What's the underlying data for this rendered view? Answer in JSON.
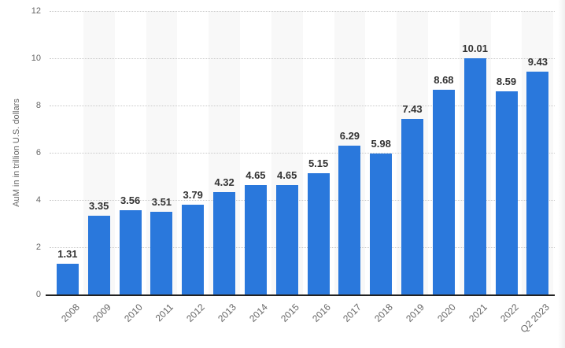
{
  "chart_data": {
    "type": "bar",
    "categories": [
      "2008",
      "2009",
      "2010",
      "2011",
      "2012",
      "2013",
      "2014",
      "2015",
      "2016",
      "2017",
      "2018",
      "2019",
      "2020",
      "2021",
      "2022",
      "Q2 2023"
    ],
    "values": [
      1.31,
      3.35,
      3.56,
      3.51,
      3.79,
      4.32,
      4.65,
      4.65,
      5.15,
      6.29,
      5.98,
      7.43,
      8.68,
      10.01,
      8.59,
      9.43
    ],
    "value_labels": [
      "1.31",
      "3.35",
      "3.56",
      "3.51",
      "3.79",
      "4.32",
      "4.65",
      "4.65",
      "5.15",
      "6.29",
      "5.98",
      "7.43",
      "8.68",
      "10.01",
      "8.59",
      "9.43"
    ],
    "title": "",
    "xlabel": "",
    "ylabel": "AuM in in trillion U.S. dollars",
    "ylim": [
      0,
      12
    ],
    "ytick_step": 2,
    "ytick_labels": [
      "0",
      "2",
      "4",
      "6",
      "8",
      "10",
      "12"
    ],
    "grid": "horizontal-dotted",
    "plot_bands": "alternating-column-shading-on-odd-categories",
    "legend": "none"
  },
  "styles": {
    "bar_color": "#2a78dc",
    "band_color": "#f8f8f8",
    "gridline_color": "#c9c9c9",
    "axis_line_color": "#222222",
    "tick_text_color": "#666666",
    "value_text_color": "#333333",
    "background_color": "#ffffff"
  }
}
